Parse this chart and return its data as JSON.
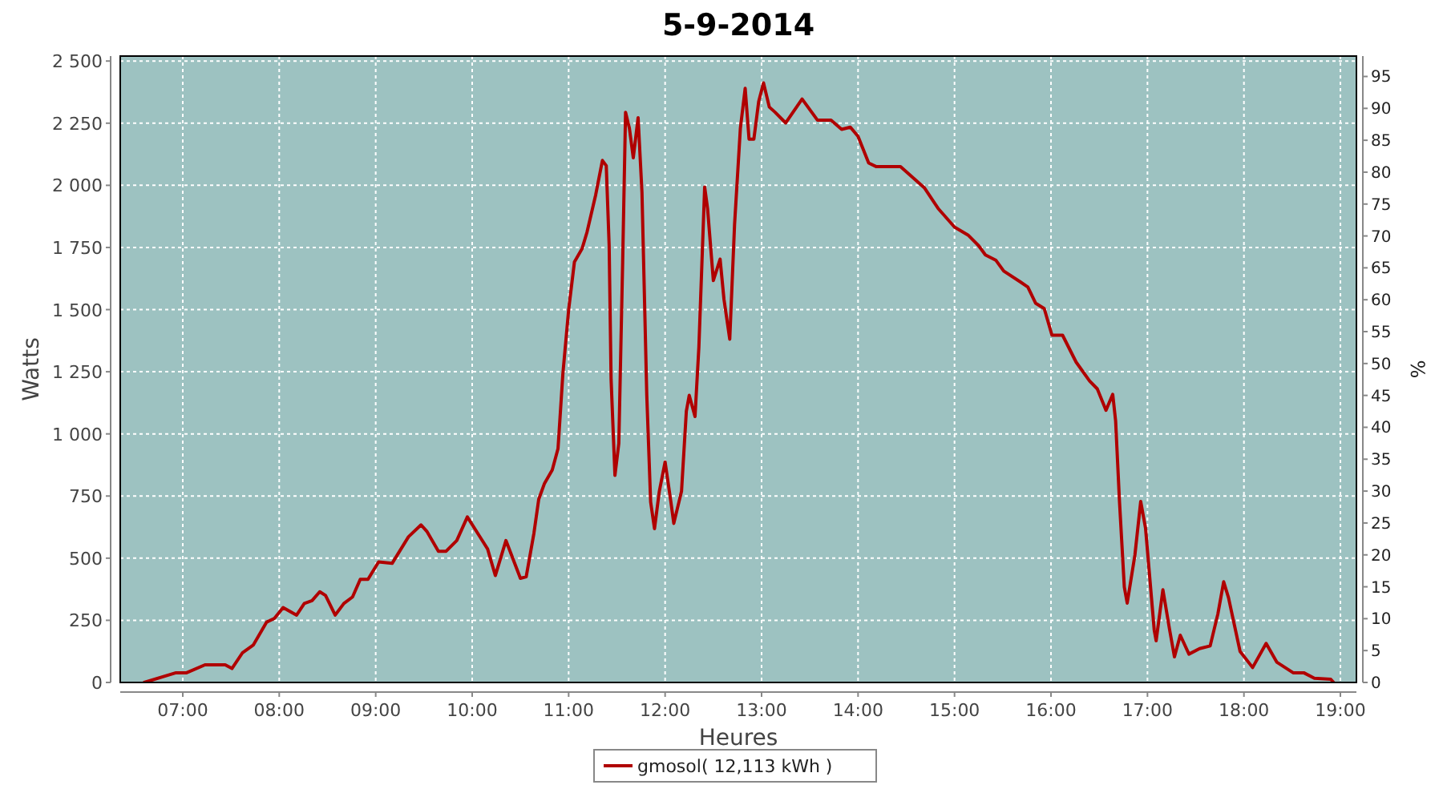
{
  "chart_data": {
    "type": "line",
    "title": "5-9-2014",
    "xlabel": "Heures",
    "ylabel": "Watts",
    "y2label": "%",
    "xlim": [
      6.352,
      19.166
    ],
    "xticks": [
      {
        "value": 7,
        "label": "07:00"
      },
      {
        "value": 8,
        "label": "08:00"
      },
      {
        "value": 9,
        "label": "09:00"
      },
      {
        "value": 10,
        "label": "10:00"
      },
      {
        "value": 11,
        "label": "11:00"
      },
      {
        "value": 12,
        "label": "12:00"
      },
      {
        "value": 13,
        "label": "13:00"
      },
      {
        "value": 14,
        "label": "14:00"
      },
      {
        "value": 15,
        "label": "15:00"
      },
      {
        "value": 16,
        "label": "16:00"
      },
      {
        "value": 17,
        "label": "17:00"
      },
      {
        "value": 18,
        "label": "18:00"
      },
      {
        "value": 19,
        "label": "19:00"
      }
    ],
    "ylim": [
      0,
      2520
    ],
    "yticks": [
      0,
      250,
      500,
      750,
      {
        "value": 1000,
        "label": "1 000"
      },
      {
        "value": 1250,
        "label": "1 250"
      },
      {
        "value": 1500,
        "label": "1 500"
      },
      {
        "value": 1750,
        "label": "1 750"
      },
      {
        "value": 2000,
        "label": "2 000"
      },
      {
        "value": 2250,
        "label": "2 250"
      },
      {
        "value": 2500,
        "label": "2 500"
      }
    ],
    "y2lim": [
      0,
      98.2
    ],
    "y2ticks": [
      0,
      5,
      10,
      15,
      20,
      25,
      30,
      35,
      40,
      45,
      50,
      55,
      60,
      65,
      70,
      75,
      80,
      85,
      90,
      95
    ],
    "grid": true,
    "legend": "bottom",
    "line_style": "solid",
    "x": [
      6.6,
      6.93,
      7.04,
      7.23,
      7.44,
      7.51,
      7.62,
      7.73,
      7.87,
      7.95,
      8.04,
      8.18,
      8.26,
      8.34,
      8.42,
      8.48,
      8.58,
      8.67,
      8.76,
      8.84,
      8.92,
      9.03,
      9.17,
      9.34,
      9.47,
      9.53,
      9.65,
      9.73,
      9.84,
      9.95,
      10.09,
      10.16,
      10.24,
      10.35,
      10.5,
      10.56,
      10.64,
      10.69,
      10.75,
      10.83,
      10.89,
      10.94,
      11.0,
      11.06,
      11.14,
      11.19,
      11.28,
      11.35,
      11.39,
      11.42,
      11.44,
      11.48,
      11.52,
      11.56,
      11.59,
      11.63,
      11.67,
      11.72,
      11.76,
      11.81,
      11.85,
      11.89,
      11.94,
      12.0,
      12.06,
      12.09,
      12.17,
      12.22,
      12.25,
      12.31,
      12.35,
      12.41,
      12.44,
      12.5,
      12.57,
      12.61,
      12.67,
      12.72,
      12.78,
      12.83,
      12.87,
      12.92,
      12.97,
      13.02,
      13.08,
      13.14,
      13.25,
      13.42,
      13.58,
      13.72,
      13.83,
      13.92,
      14.0,
      14.11,
      14.19,
      14.44,
      14.69,
      14.83,
      15.0,
      15.14,
      15.25,
      15.32,
      15.43,
      15.51,
      15.68,
      15.76,
      15.84,
      15.93,
      16.01,
      16.12,
      16.26,
      16.4,
      16.48,
      16.57,
      16.64,
      16.67,
      16.71,
      16.76,
      16.79,
      16.87,
      16.93,
      16.98,
      17.07,
      17.09,
      17.16,
      17.23,
      17.28,
      17.34,
      17.43,
      17.54,
      17.65,
      17.73,
      17.79,
      17.84,
      17.96,
      18.09,
      18.23,
      18.34,
      18.51,
      18.62,
      18.73,
      18.9,
      18.93
    ],
    "series": [
      {
        "name": "gmosol( 12,113 kWh )",
        "color": "#b00000",
        "values": [
          0,
          39,
          39,
          71,
          71,
          56,
          120,
          150,
          243,
          258,
          301,
          271,
          318,
          329,
          365,
          350,
          271,
          318,
          344,
          415,
          415,
          485,
          479,
          586,
          634,
          608,
          528,
          528,
          571,
          666,
          580,
          537,
          430,
          571,
          419,
          425,
          600,
          737,
          801,
          855,
          941,
          1241,
          1499,
          1692,
          1746,
          1811,
          1961,
          2100,
          2079,
          1757,
          1220,
          833,
          962,
          1692,
          2294,
          2229,
          2111,
          2272,
          1972,
          1155,
          726,
          619,
          769,
          887,
          726,
          640,
          769,
          1091,
          1155,
          1070,
          1349,
          1993,
          1907,
          1617,
          1703,
          1542,
          1381,
          1843,
          2229,
          2390,
          2186,
          2186,
          2337,
          2412,
          2315,
          2294,
          2251,
          2347,
          2262,
          2262,
          2225,
          2234,
          2197,
          2090,
          2075,
          2075,
          1989,
          1907,
          1832,
          1800,
          1757,
          1720,
          1698,
          1655,
          1612,
          1591,
          1526,
          1504,
          1397,
          1397,
          1289,
          1213,
          1181,
          1095,
          1159,
          1052,
          728,
          384,
          319,
          513,
          728,
          621,
          211,
          168,
          373,
          211,
          103,
          190,
          114,
          136,
          147,
          276,
          405,
          341,
          125,
          60,
          157,
          82,
          39,
          39,
          17,
          13,
          0
        ]
      }
    ]
  }
}
